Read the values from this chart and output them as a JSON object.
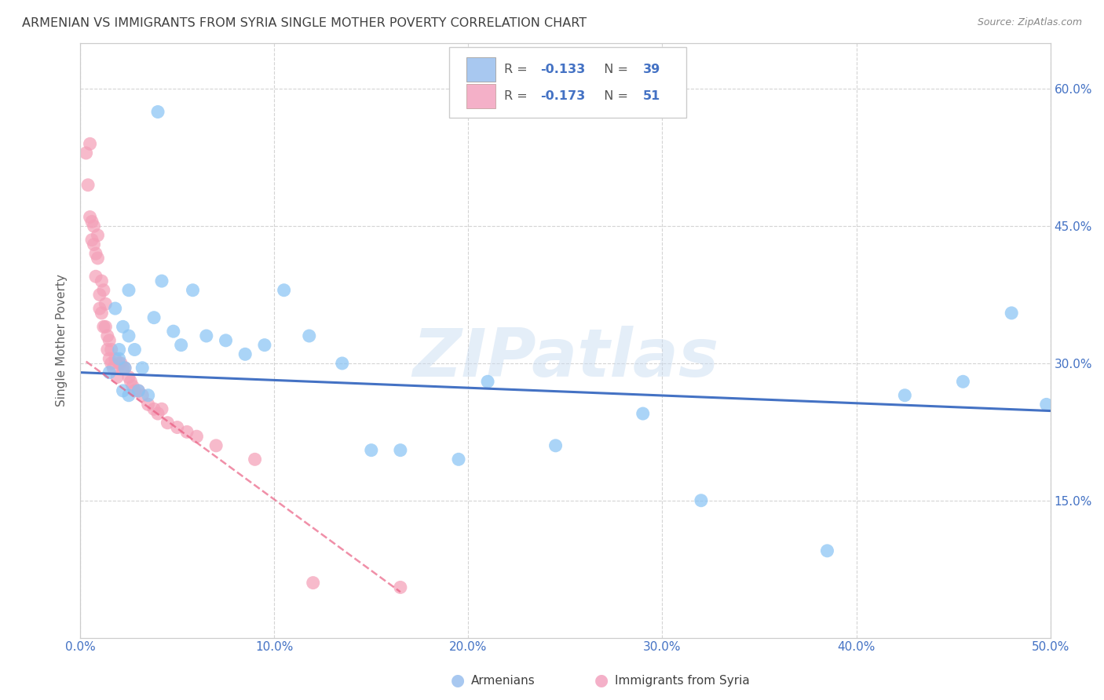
{
  "title": "ARMENIAN VS IMMIGRANTS FROM SYRIA SINGLE MOTHER POVERTY CORRELATION CHART",
  "source": "Source: ZipAtlas.com",
  "ylabel": "Single Mother Poverty",
  "xlim": [
    0.0,
    0.5
  ],
  "ylim": [
    0.0,
    0.65
  ],
  "xticks": [
    0.0,
    0.1,
    0.2,
    0.3,
    0.4,
    0.5
  ],
  "yticks": [
    0.15,
    0.3,
    0.45,
    0.6
  ],
  "xticklabels": [
    "0.0%",
    "10.0%",
    "20.0%",
    "30.0%",
    "40.0%",
    "50.0%"
  ],
  "yticklabels": [
    "15.0%",
    "30.0%",
    "45.0%",
    "60.0%"
  ],
  "watermark": "ZIPatlas",
  "armenian_x": [
    0.022,
    0.025,
    0.018,
    0.02,
    0.023,
    0.025,
    0.015,
    0.02,
    0.022,
    0.025,
    0.028,
    0.03,
    0.032,
    0.035,
    0.038,
    0.04,
    0.042,
    0.048,
    0.052,
    0.058,
    0.065,
    0.075,
    0.085,
    0.095,
    0.105,
    0.118,
    0.135,
    0.15,
    0.165,
    0.195,
    0.21,
    0.245,
    0.29,
    0.32,
    0.385,
    0.425,
    0.455,
    0.48,
    0.498
  ],
  "armenian_y": [
    0.34,
    0.38,
    0.36,
    0.315,
    0.295,
    0.33,
    0.29,
    0.305,
    0.27,
    0.265,
    0.315,
    0.27,
    0.295,
    0.265,
    0.35,
    0.575,
    0.39,
    0.335,
    0.32,
    0.38,
    0.33,
    0.325,
    0.31,
    0.32,
    0.38,
    0.33,
    0.3,
    0.205,
    0.205,
    0.195,
    0.28,
    0.21,
    0.245,
    0.15,
    0.095,
    0.265,
    0.28,
    0.355,
    0.255
  ],
  "syria_x": [
    0.003,
    0.004,
    0.005,
    0.005,
    0.006,
    0.006,
    0.007,
    0.007,
    0.008,
    0.008,
    0.009,
    0.009,
    0.01,
    0.01,
    0.011,
    0.011,
    0.012,
    0.012,
    0.013,
    0.013,
    0.014,
    0.014,
    0.015,
    0.015,
    0.016,
    0.016,
    0.017,
    0.018,
    0.019,
    0.02,
    0.021,
    0.022,
    0.023,
    0.025,
    0.026,
    0.027,
    0.028,
    0.03,
    0.032,
    0.035,
    0.038,
    0.04,
    0.042,
    0.045,
    0.05,
    0.055,
    0.06,
    0.07,
    0.09,
    0.12,
    0.165
  ],
  "syria_y": [
    0.53,
    0.495,
    0.54,
    0.46,
    0.455,
    0.435,
    0.45,
    0.43,
    0.42,
    0.395,
    0.44,
    0.415,
    0.375,
    0.36,
    0.355,
    0.39,
    0.34,
    0.38,
    0.34,
    0.365,
    0.33,
    0.315,
    0.325,
    0.305,
    0.315,
    0.3,
    0.295,
    0.305,
    0.285,
    0.3,
    0.3,
    0.295,
    0.295,
    0.285,
    0.28,
    0.275,
    0.27,
    0.27,
    0.265,
    0.255,
    0.25,
    0.245,
    0.25,
    0.235,
    0.23,
    0.225,
    0.22,
    0.21,
    0.195,
    0.06,
    0.055
  ],
  "armenian_color": "#89c4f4",
  "syria_color": "#f4a0b8",
  "trend_armenian_color": "#4472c4",
  "trend_syria_color": "#e8547a",
  "background_color": "#ffffff",
  "grid_color": "#d0d0d0",
  "title_color": "#404040",
  "tick_color": "#4472c4",
  "trend_armenian_start_x": 0.0,
  "trend_armenian_start_y": 0.29,
  "trend_armenian_end_x": 0.5,
  "trend_armenian_end_y": 0.248,
  "trend_syria_start_x": 0.003,
  "trend_syria_start_y": 0.302,
  "trend_syria_end_x": 0.165,
  "trend_syria_end_y": 0.05
}
